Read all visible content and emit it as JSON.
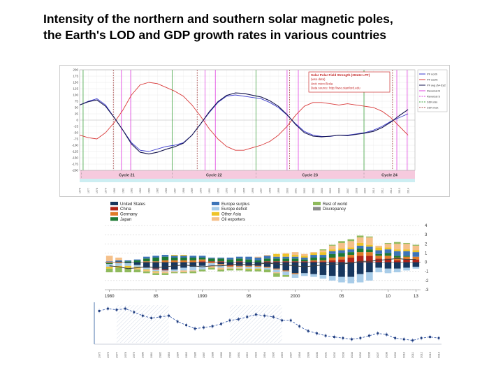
{
  "slide": {
    "title_lines": [
      "Intensity of the northern and southern solar magnetic poles,",
      "the Earth's LOD and GDP growth rates in various countries"
    ]
  },
  "chart_data": [
    {
      "id": "solar_polar_field",
      "type": "line",
      "title": "Solar Polar Field Strength (20nHz LPF)",
      "info_box": [
        "Solar Polar Field Strength (20nHz LPF)",
        "(wso data)",
        "Unit: microTesla",
        "Data source: http://wso.stanford.edu"
      ],
      "ylabel": "microTesla",
      "ylim": [
        -200,
        200
      ],
      "y_ticks": [
        200,
        175,
        150,
        125,
        100,
        75,
        50,
        25,
        0,
        -25,
        -50,
        -75,
        -100,
        -125,
        -150,
        -175,
        -200
      ],
      "x_years": [
        1976,
        1977,
        1978,
        1979,
        1980,
        1981,
        1982,
        1983,
        1984,
        1985,
        1986,
        1987,
        1988,
        1989,
        1990,
        1991,
        1992,
        1993,
        1994,
        1995,
        1996,
        1997,
        1998,
        1999,
        2000,
        2001,
        2002,
        2003,
        2004,
        2005,
        2006,
        2007,
        2008,
        2009,
        2010,
        2011,
        2012,
        2013,
        2014
      ],
      "series": [
        {
          "name": "PF south",
          "color": "#d93a3a",
          "values": [
            -60,
            -70,
            -75,
            -50,
            -10,
            40,
            100,
            140,
            150,
            145,
            130,
            115,
            95,
            60,
            15,
            -35,
            -75,
            -105,
            -120,
            -120,
            -110,
            -100,
            -85,
            -60,
            -25,
            20,
            55,
            70,
            70,
            65,
            60,
            65,
            60,
            55,
            50,
            35,
            10,
            -25,
            -60
          ]
        },
        {
          "name": "PF north",
          "color": "#3a3acc",
          "values": [
            60,
            75,
            85,
            60,
            10,
            -40,
            -90,
            -120,
            -125,
            -115,
            -105,
            -100,
            -90,
            -60,
            -15,
            30,
            70,
            95,
            100,
            95,
            90,
            85,
            70,
            50,
            20,
            -15,
            -45,
            -60,
            -65,
            -65,
            -60,
            -60,
            -55,
            -50,
            -40,
            -25,
            -5,
            10,
            25
          ]
        },
        {
          "name": "PF avg (N+S)/2",
          "color": "#16164f",
          "values": [
            60,
            73,
            80,
            55,
            10,
            -40,
            -95,
            -128,
            -135,
            -128,
            -116,
            -106,
            -92,
            -60,
            -15,
            33,
            73,
            98,
            108,
            106,
            99,
            92,
            77,
            55,
            22,
            -18,
            -50,
            -64,
            -67,
            -64,
            -60,
            -62,
            -57,
            -52,
            -45,
            -30,
            -8,
            18,
            42
          ]
        }
      ],
      "legend": [
        {
          "label": "PF north",
          "color": "#3a3acc",
          "dash": "solid"
        },
        {
          "label": "PF south",
          "color": "#d93a3a",
          "dash": "solid"
        },
        {
          "label": "PF avg (N+S)/2",
          "color": "#16164f",
          "dash": "solid"
        },
        {
          "label": "Reversal N",
          "color": "#e040e0",
          "dash": "solid"
        },
        {
          "label": "Reversal S",
          "color": "#e040e0",
          "dash": "dash"
        },
        {
          "label": "SSN min",
          "color": "#3ca03c",
          "dash": "dash"
        },
        {
          "label": "SSN max",
          "color": "#a04040",
          "dash": "dash"
        }
      ],
      "vlines": [
        {
          "year": 1976.4,
          "color": "#3ca03c",
          "dash": false
        },
        {
          "year": 1986.7,
          "color": "#3ca03c",
          "dash": false
        },
        {
          "year": 1996.4,
          "color": "#3ca03c",
          "dash": false
        },
        {
          "year": 2008.9,
          "color": "#3ca03c",
          "dash": false
        },
        {
          "year": 1980.8,
          "color": "#e040e0",
          "dash": false
        },
        {
          "year": 1981.9,
          "color": "#e040e0",
          "dash": false
        },
        {
          "year": 1990.5,
          "color": "#e040e0",
          "dash": false
        },
        {
          "year": 1991.7,
          "color": "#e040e0",
          "dash": false
        },
        {
          "year": 2000.0,
          "color": "#e040e0",
          "dash": false
        },
        {
          "year": 2001.3,
          "color": "#e040e0",
          "dash": false
        },
        {
          "year": 2012.7,
          "color": "#e040e0",
          "dash": false
        },
        {
          "year": 2013.9,
          "color": "#e040e0",
          "dash": false
        },
        {
          "year": 1979.9,
          "color": "#a04040",
          "dash": true
        },
        {
          "year": 1989.6,
          "color": "#a04040",
          "dash": true
        },
        {
          "year": 2000.3,
          "color": "#a04040",
          "dash": true
        },
        {
          "year": 2012.2,
          "color": "#a04040",
          "dash": true
        }
      ],
      "cycles": [
        {
          "label": "Cycle 21",
          "start": 1976.2,
          "end": 1986.7
        },
        {
          "label": "Cycle 22",
          "start": 1986.7,
          "end": 1996.4
        },
        {
          "label": "Cycle 23",
          "start": 1996.4,
          "end": 2008.9
        },
        {
          "label": "Cycle 24",
          "start": 2008.9,
          "end": 2014.8
        }
      ],
      "band_colors": {
        "cycle_band": "#f6cade",
        "lower_strip": "#cdeef2"
      }
    },
    {
      "id": "global_current_account_balances",
      "type": "bar",
      "stacked": true,
      "years": [
        1980,
        1981,
        1982,
        1983,
        1984,
        1985,
        1986,
        1987,
        1988,
        1989,
        1990,
        1991,
        1992,
        1993,
        1994,
        1995,
        1996,
        1997,
        1998,
        1999,
        2000,
        2001,
        2002,
        2003,
        2004,
        2005,
        2006,
        2007,
        2008,
        2009,
        2010,
        2011,
        2012,
        2013
      ],
      "ylim": [
        -3,
        4
      ],
      "y_ticks": [
        4,
        3,
        2,
        1,
        0,
        -1,
        -2,
        -3
      ],
      "x_ticks": [
        {
          "year": 1980,
          "label": "1980"
        },
        {
          "year": 1985,
          "label": "85"
        },
        {
          "year": 1990,
          "label": "1990"
        },
        {
          "year": 1995,
          "label": "95"
        },
        {
          "year": 2000,
          "label": "2000"
        },
        {
          "year": 2005,
          "label": "05"
        },
        {
          "year": 2010,
          "label": "10"
        },
        {
          "year": 2013,
          "label": "13"
        }
      ],
      "legend_columns": [
        [
          {
            "label": "United States",
            "color": "#17375e"
          },
          {
            "label": "China",
            "color": "#b02418"
          },
          {
            "label": "Germany",
            "color": "#e07b28"
          },
          {
            "label": "Japan",
            "color": "#1e7a34"
          }
        ],
        [
          {
            "label": "Europe surplus",
            "color": "#3d74b8"
          },
          {
            "label": "Europe deficit",
            "color": "#a8cce8"
          },
          {
            "label": "Other Asia",
            "color": "#eec328"
          },
          {
            "label": "Oil exporters",
            "color": "#f5c08a"
          }
        ],
        [
          {
            "label": "Rest of world",
            "color": "#8fba5c"
          },
          {
            "label": "Discrepancy",
            "color": "#8c8c8c"
          }
        ]
      ],
      "bar_series": [
        {
          "name": "United States",
          "color": "#17375e",
          "values": [
            0.0,
            0.1,
            -0.1,
            -0.3,
            -0.6,
            -0.7,
            -0.8,
            -0.8,
            -0.6,
            -0.5,
            -0.4,
            0.0,
            -0.2,
            -0.3,
            -0.4,
            -0.4,
            -0.4,
            -0.5,
            -0.7,
            -0.9,
            -1.2,
            -1.2,
            -1.3,
            -1.4,
            -1.5,
            -1.6,
            -1.6,
            -1.3,
            -1.1,
            -0.6,
            -0.7,
            -0.7,
            -0.6,
            -0.5
          ]
        },
        {
          "name": "China",
          "color": "#b02418",
          "values": [
            0.0,
            0.0,
            0.0,
            0.0,
            0.0,
            -0.1,
            -0.1,
            0.0,
            0.0,
            0.0,
            0.1,
            0.1,
            0.1,
            -0.1,
            0.1,
            0.0,
            0.0,
            0.1,
            0.1,
            0.1,
            0.1,
            0.1,
            0.1,
            0.1,
            0.2,
            0.3,
            0.5,
            0.7,
            0.7,
            0.4,
            0.4,
            0.2,
            0.3,
            0.3
          ]
        },
        {
          "name": "Germany",
          "color": "#e07b28",
          "values": [
            -0.1,
            -0.1,
            0.0,
            0.0,
            0.1,
            0.1,
            0.2,
            0.2,
            0.2,
            0.2,
            0.2,
            -0.1,
            -0.1,
            -0.1,
            -0.1,
            -0.1,
            -0.1,
            -0.1,
            -0.1,
            -0.1,
            -0.1,
            0.0,
            0.1,
            0.1,
            0.3,
            0.3,
            0.3,
            0.4,
            0.4,
            0.3,
            0.3,
            0.3,
            0.3,
            0.3
          ]
        },
        {
          "name": "Japan",
          "color": "#1e7a34",
          "values": [
            -0.1,
            0.0,
            0.1,
            0.2,
            0.3,
            0.4,
            0.4,
            0.3,
            0.3,
            0.3,
            0.2,
            0.3,
            0.3,
            0.3,
            0.3,
            0.3,
            0.2,
            0.3,
            0.3,
            0.3,
            0.3,
            0.2,
            0.3,
            0.3,
            0.4,
            0.4,
            0.3,
            0.4,
            0.3,
            0.2,
            0.3,
            0.2,
            0.1,
            0.0
          ]
        },
        {
          "name": "Europe surplus",
          "color": "#3d74b8",
          "values": [
            0.1,
            0.1,
            0.1,
            0.1,
            0.2,
            0.2,
            0.2,
            0.2,
            0.2,
            0.2,
            0.2,
            0.1,
            0.1,
            0.2,
            0.2,
            0.3,
            0.3,
            0.3,
            0.2,
            0.2,
            0.2,
            0.2,
            0.3,
            0.3,
            0.3,
            0.3,
            0.3,
            0.3,
            0.3,
            0.4,
            0.4,
            0.5,
            0.5,
            0.5
          ]
        },
        {
          "name": "Europe deficit",
          "color": "#a8cce8",
          "values": [
            -0.3,
            -0.3,
            -0.3,
            -0.2,
            -0.2,
            -0.2,
            -0.1,
            -0.2,
            -0.3,
            -0.4,
            -0.4,
            -0.3,
            -0.3,
            -0.1,
            -0.1,
            -0.2,
            -0.2,
            -0.2,
            -0.3,
            -0.4,
            -0.4,
            -0.3,
            -0.3,
            -0.4,
            -0.5,
            -0.6,
            -0.7,
            -0.9,
            -0.9,
            -0.5,
            -0.5,
            -0.4,
            -0.3,
            -0.2
          ]
        },
        {
          "name": "Other Asia",
          "color": "#eec328",
          "values": [
            -0.2,
            -0.2,
            -0.2,
            -0.2,
            -0.1,
            -0.1,
            0.0,
            0.1,
            0.1,
            0.0,
            0.0,
            0.0,
            0.0,
            0.0,
            0.0,
            -0.1,
            -0.1,
            0.0,
            0.3,
            0.3,
            0.2,
            0.2,
            0.2,
            0.3,
            0.2,
            0.2,
            0.2,
            0.3,
            0.2,
            0.3,
            0.2,
            0.2,
            0.2,
            0.2
          ]
        },
        {
          "name": "Oil exporters",
          "color": "#f5c08a",
          "values": [
            0.6,
            0.3,
            0.0,
            -0.1,
            -0.1,
            -0.1,
            -0.2,
            -0.1,
            -0.2,
            -0.1,
            0.0,
            -0.2,
            -0.2,
            -0.1,
            -0.1,
            0.0,
            0.1,
            0.1,
            -0.1,
            0.1,
            0.3,
            0.2,
            0.1,
            0.2,
            0.4,
            0.6,
            0.7,
            0.6,
            0.8,
            0.2,
            0.4,
            0.6,
            0.6,
            0.5
          ]
        },
        {
          "name": "Rest of world",
          "color": "#8fba5c",
          "values": [
            -0.4,
            -0.5,
            -0.5,
            -0.3,
            -0.2,
            -0.2,
            -0.2,
            -0.1,
            -0.1,
            -0.2,
            -0.2,
            -0.2,
            -0.2,
            -0.2,
            -0.2,
            -0.2,
            -0.2,
            -0.3,
            -0.4,
            -0.2,
            0.0,
            0.0,
            0.0,
            0.1,
            0.1,
            0.2,
            0.2,
            0.2,
            0.1,
            0.0,
            0.1,
            0.2,
            0.1,
            0.1
          ]
        }
      ],
      "line_series": {
        "name": "Discrepancy",
        "color": "#3a3a3a",
        "values": [
          -0.4,
          -0.5,
          -0.7,
          -0.6,
          -0.5,
          -0.6,
          -0.5,
          -0.4,
          -0.3,
          -0.4,
          -0.5,
          -0.4,
          -0.4,
          -0.3,
          -0.2,
          -0.3,
          -0.2,
          -0.1,
          -0.2,
          -0.3,
          -0.4,
          -0.5,
          -0.4,
          -0.3,
          -0.2,
          -0.2,
          -0.1,
          0.1,
          0.1,
          0.2,
          0.3,
          0.4,
          0.3,
          0.3
        ]
      }
    },
    {
      "id": "earth_lod",
      "type": "line",
      "years": [
        1975,
        1976,
        1977,
        1978,
        1979,
        1980,
        1981,
        1982,
        1983,
        1984,
        1985,
        1986,
        1987,
        1988,
        1989,
        1990,
        1991,
        1992,
        1993,
        1994,
        1995,
        1996,
        1997,
        1998,
        1999,
        2000,
        2001,
        2002,
        2003,
        2004,
        2005,
        2006,
        2007,
        2008,
        2009,
        2010,
        2011,
        2012,
        2013,
        2014
      ],
      "values": [
        2.7,
        2.9,
        2.8,
        2.9,
        2.6,
        2.3,
        2.1,
        2.2,
        2.3,
        1.8,
        1.5,
        1.2,
        1.3,
        1.4,
        1.6,
        1.9,
        2.0,
        2.2,
        2.4,
        2.3,
        2.2,
        1.9,
        1.9,
        1.4,
        1.0,
        0.8,
        0.6,
        0.5,
        0.4,
        0.3,
        0.4,
        0.6,
        0.8,
        0.7,
        0.4,
        0.3,
        0.2,
        0.4,
        0.5,
        0.4
      ],
      "ylim": [
        0,
        3.2
      ],
      "line_color": "#3c5fae",
      "marker_color": "#1d3a7a",
      "hatch_bands": [
        {
          "start": 1977,
          "end": 1983
        },
        {
          "start": 1990,
          "end": 1996
        }
      ]
    }
  ]
}
